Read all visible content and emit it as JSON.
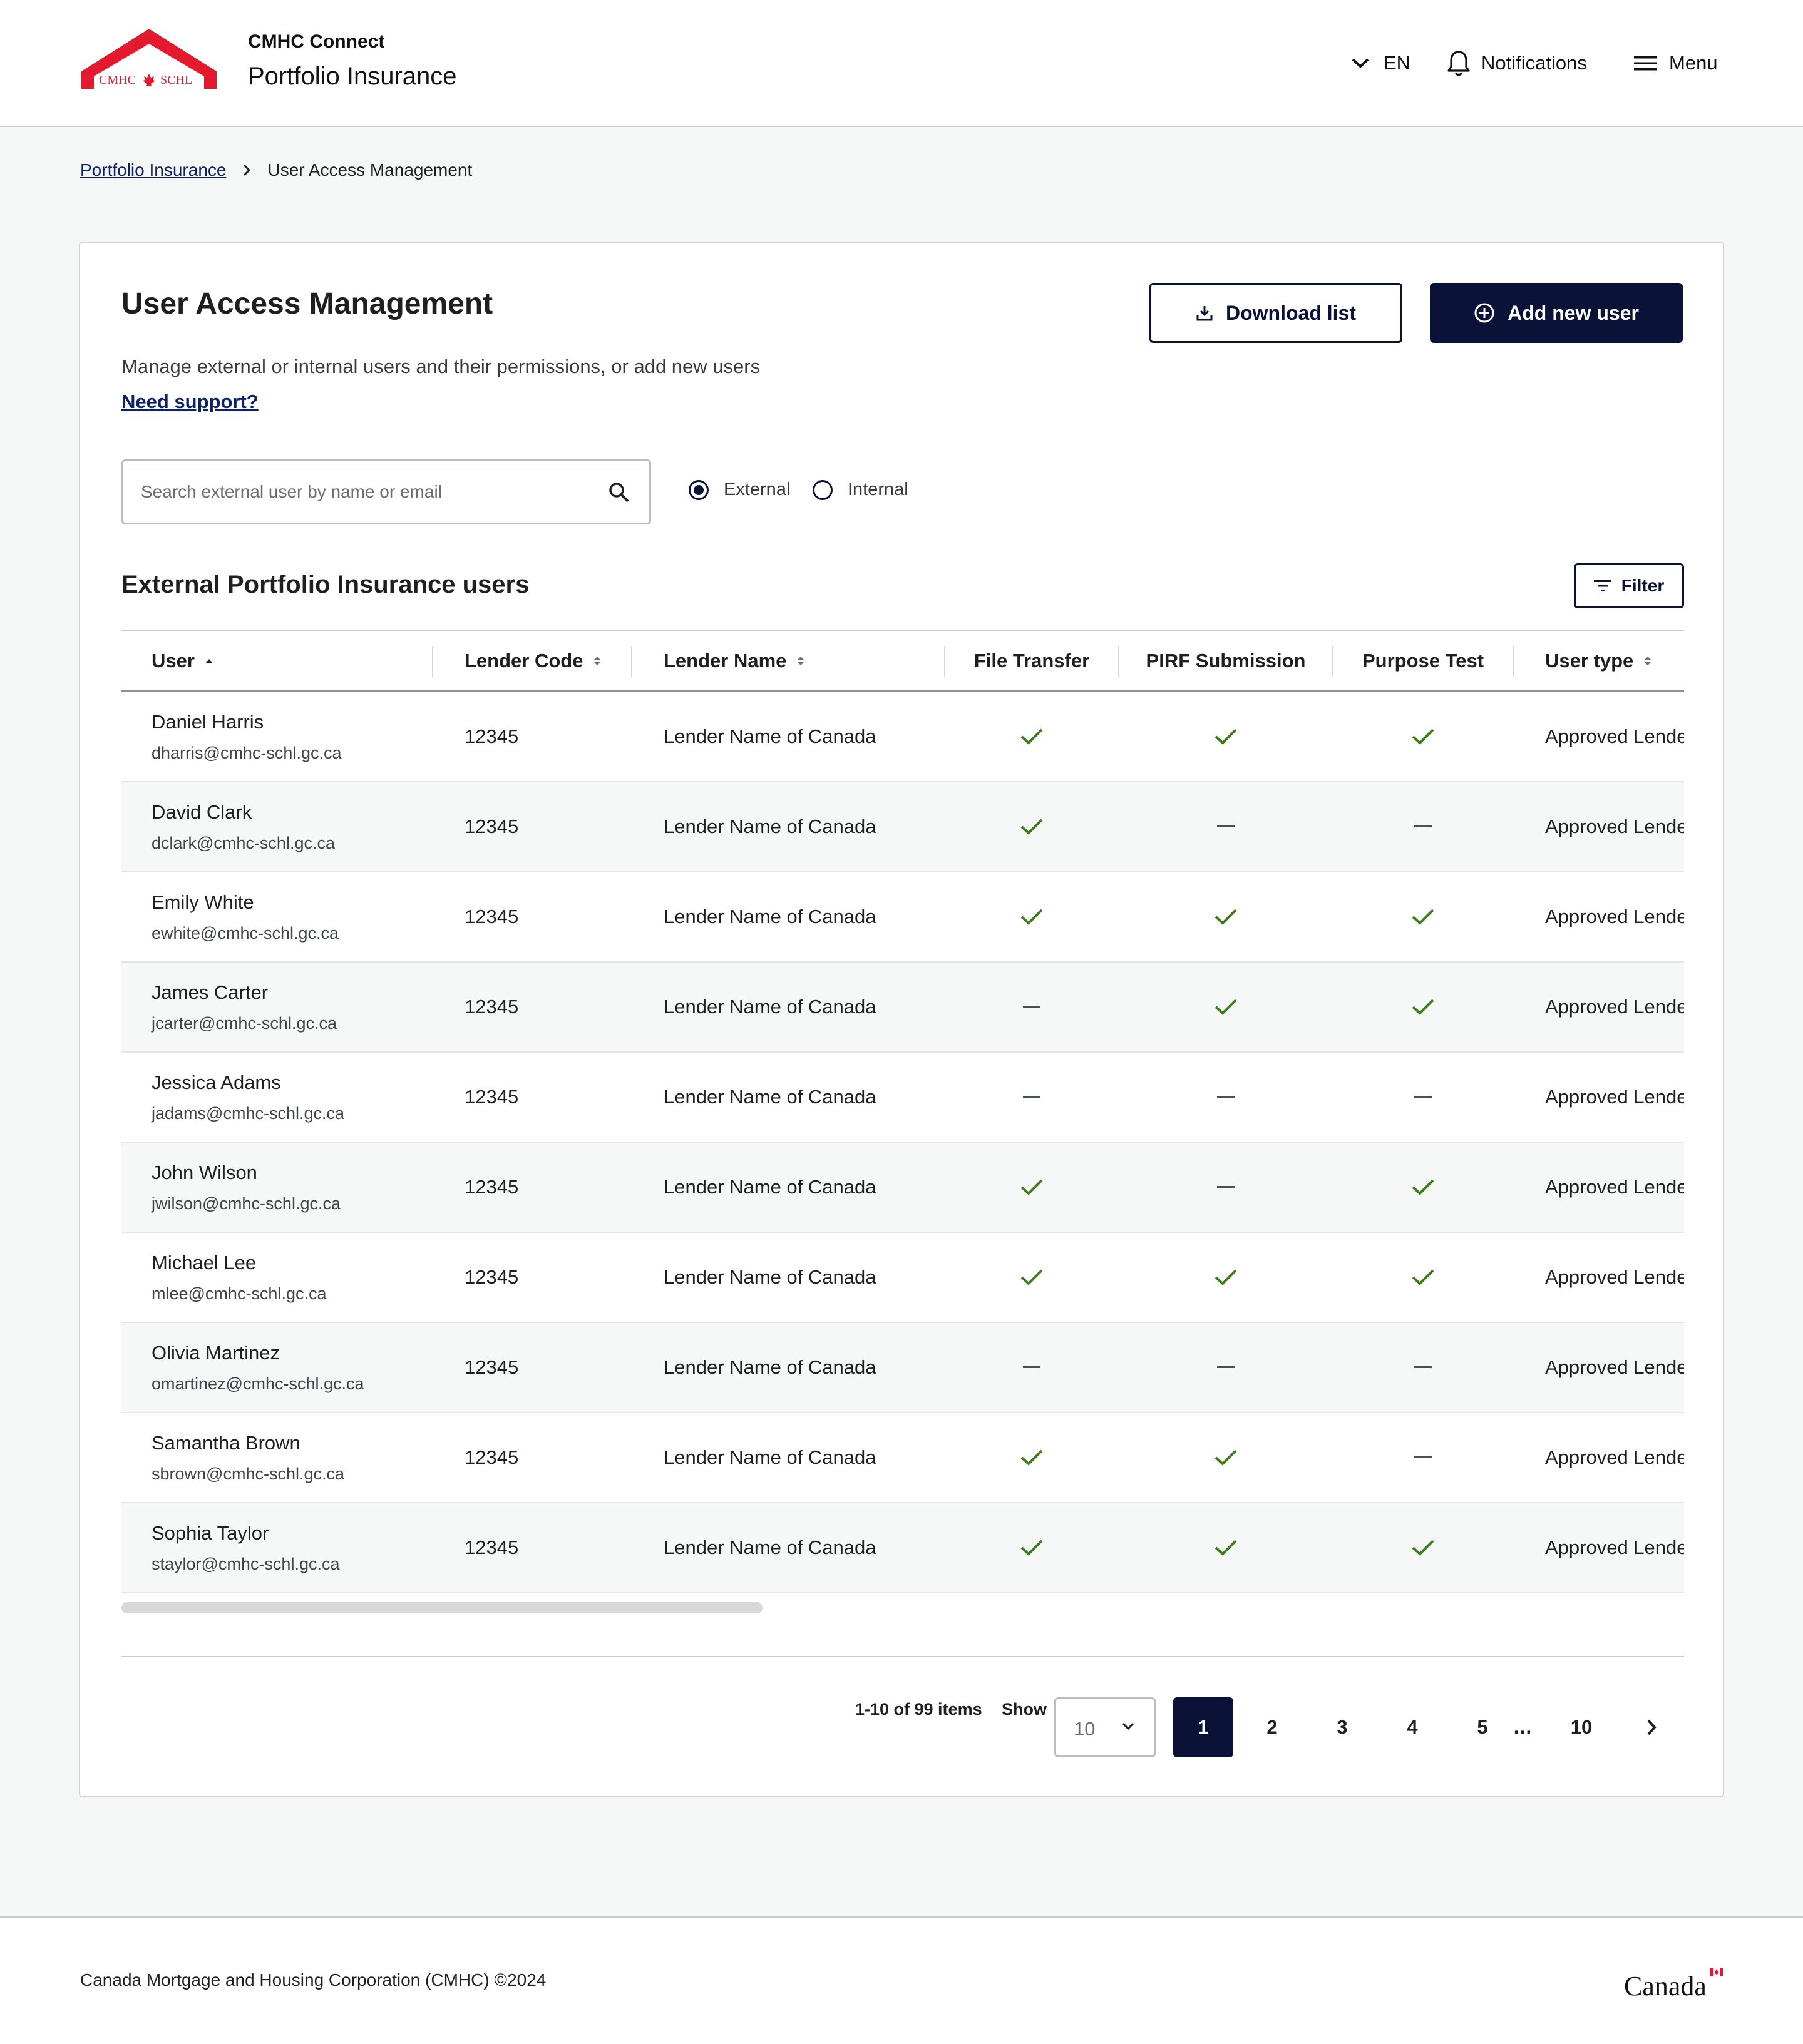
{
  "header": {
    "logo_text": "CMHC SCHL",
    "app_small": "CMHC Connect",
    "app_title": "Portfolio Insurance",
    "lang": "EN",
    "notifications": "Notifications",
    "menu": "Menu"
  },
  "breadcrumb": {
    "parent": "Portfolio Insurance",
    "current": "User Access Management"
  },
  "page": {
    "title": "User Access Management",
    "description": "Manage external or internal users and their permissions, or add new users",
    "support_link": "Need support?",
    "download_label": "Download list",
    "add_label": "Add new user"
  },
  "search": {
    "placeholder": "Search external user by name or email",
    "value": ""
  },
  "user_scope": {
    "options": [
      "External",
      "Internal"
    ],
    "selected": "External"
  },
  "table": {
    "section_title": "External Portfolio Insurance users",
    "filter_label": "Filter",
    "columns": [
      "User",
      "Lender Code",
      "Lender Name",
      "File Transfer",
      "PIRF Submission",
      "Purpose Test",
      "User type"
    ],
    "rows": [
      {
        "name": "Daniel Harris",
        "email": "dharris@cmhc-schl.gc.ca",
        "lender_code": "12345",
        "lender_name": "Lender Name of Canada",
        "file_transfer": true,
        "pirf_submission": true,
        "purpose_test": true,
        "user_type": "Approved Lender"
      },
      {
        "name": "David Clark",
        "email": "dclark@cmhc-schl.gc.ca",
        "lender_code": "12345",
        "lender_name": "Lender Name of Canada",
        "file_transfer": true,
        "pirf_submission": false,
        "purpose_test": false,
        "user_type": "Approved Lender"
      },
      {
        "name": "Emily White",
        "email": "ewhite@cmhc-schl.gc.ca",
        "lender_code": "12345",
        "lender_name": "Lender Name of Canada",
        "file_transfer": true,
        "pirf_submission": true,
        "purpose_test": true,
        "user_type": "Approved Lender"
      },
      {
        "name": "James Carter",
        "email": "jcarter@cmhc-schl.gc.ca",
        "lender_code": "12345",
        "lender_name": "Lender Name of Canada",
        "file_transfer": false,
        "pirf_submission": true,
        "purpose_test": true,
        "user_type": "Approved Lender"
      },
      {
        "name": "Jessica Adams",
        "email": "jadams@cmhc-schl.gc.ca",
        "lender_code": "12345",
        "lender_name": "Lender Name of Canada",
        "file_transfer": false,
        "pirf_submission": false,
        "purpose_test": false,
        "user_type": "Approved Lender"
      },
      {
        "name": "John Wilson",
        "email": "jwilson@cmhc-schl.gc.ca",
        "lender_code": "12345",
        "lender_name": "Lender Name of Canada",
        "file_transfer": true,
        "pirf_submission": false,
        "purpose_test": true,
        "user_type": "Approved Lender"
      },
      {
        "name": "Michael Lee",
        "email": "mlee@cmhc-schl.gc.ca",
        "lender_code": "12345",
        "lender_name": "Lender Name of Canada",
        "file_transfer": true,
        "pirf_submission": true,
        "purpose_test": true,
        "user_type": "Approved Lender"
      },
      {
        "name": "Olivia Martinez",
        "email": "omartinez@cmhc-schl.gc.ca",
        "lender_code": "12345",
        "lender_name": "Lender Name of Canada",
        "file_transfer": false,
        "pirf_submission": false,
        "purpose_test": false,
        "user_type": "Approved Lender"
      },
      {
        "name": "Samantha Brown",
        "email": "sbrown@cmhc-schl.gc.ca",
        "lender_code": "12345",
        "lender_name": "Lender Name of Canada",
        "file_transfer": true,
        "pirf_submission": true,
        "purpose_test": false,
        "user_type": "Approved Lender"
      },
      {
        "name": "Sophia Taylor",
        "email": "staylor@cmhc-schl.gc.ca",
        "lender_code": "12345",
        "lender_name": "Lender Name of Canada",
        "file_transfer": true,
        "pirf_submission": true,
        "purpose_test": true,
        "user_type": "Approved Lender"
      }
    ]
  },
  "pagination": {
    "info": "1-10 of 99 items",
    "show_label": "Show",
    "page_size": "10",
    "pages": [
      "1",
      "2",
      "3",
      "4",
      "5",
      "…",
      "10"
    ],
    "current": "1"
  },
  "footer": {
    "copyright": "Canada Mortgage and Housing Corporation (CMHC) ©2024",
    "wordmark": "Canada"
  },
  "colors": {
    "brand_navy": "#0b1238",
    "link": "#0e2166",
    "brand_red": "#e3192d",
    "check_green": "#3f7d1c"
  },
  "icons": {
    "check": "check-icon",
    "none": "dash-icon",
    "sort_asc": "sort-ascending-icon",
    "sort": "sort-icon"
  }
}
